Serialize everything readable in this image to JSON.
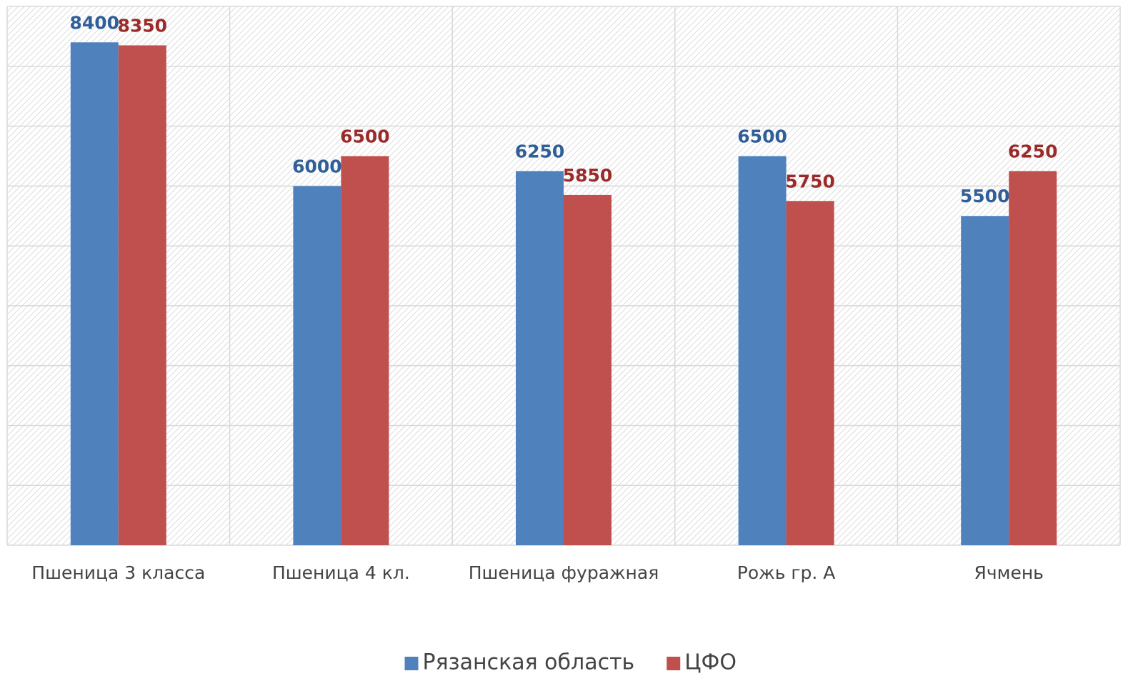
{
  "chart_data": {
    "type": "bar",
    "categories": [
      "Пшеница 3 класса",
      "Пшеница 4 кл.",
      "Пшеница фуражная",
      "Рожь гр. А",
      "Ячмень"
    ],
    "series": [
      {
        "name": "Рязанская область",
        "color": "#4f81bd",
        "label_color": "#2f5e98",
        "values": [
          8400,
          6000,
          6250,
          6500,
          5500
        ]
      },
      {
        "name": "ЦФО",
        "color": "#c0504d",
        "label_color": "#9b2a2a",
        "values": [
          8350,
          6500,
          5850,
          5750,
          6250
        ]
      }
    ],
    "ylim": [
      0,
      9000
    ],
    "yticks": [
      0,
      1000,
      2000,
      3000,
      4000,
      5000,
      6000,
      7000,
      8000,
      9000
    ],
    "grid": true,
    "legend": "bottom"
  }
}
